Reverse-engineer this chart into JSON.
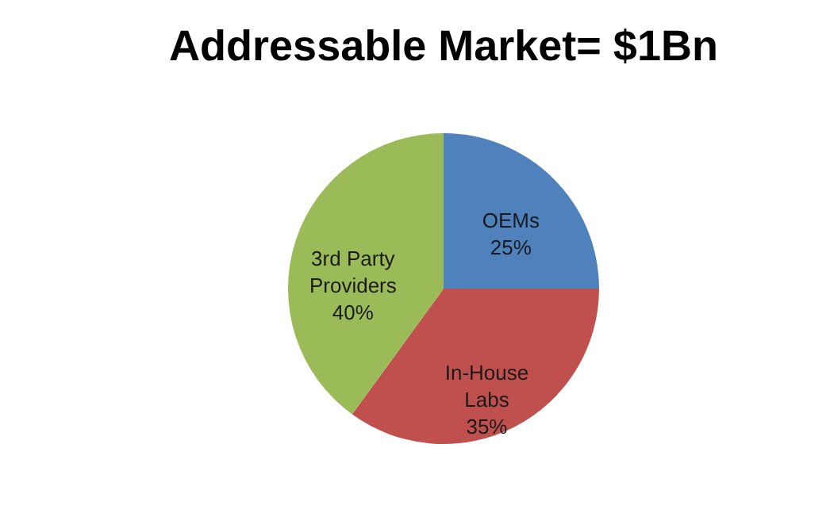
{
  "chart_data": {
    "type": "pie",
    "title": "Addressable Market= $1Bn",
    "categories": [
      "OEMs",
      "In-House Labs",
      "3rd Party Providers"
    ],
    "values": [
      25,
      35,
      40
    ],
    "colors": [
      "#4f81bd",
      "#c0504d",
      "#9bbb59"
    ],
    "value_labels": [
      "25%",
      "35%",
      "40%"
    ],
    "legend": false
  }
}
